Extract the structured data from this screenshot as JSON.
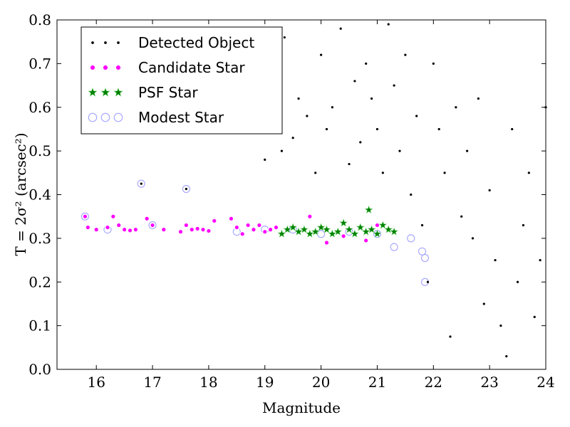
{
  "chart_data": {
    "type": "scatter",
    "xlabel": "Magnitude",
    "ylabel": "T = 2σ² (arcsec²)",
    "xlim": [
      15.3,
      24
    ],
    "ylim": [
      0,
      0.8
    ],
    "xticks": [
      "16",
      "17",
      "18",
      "19",
      "20",
      "21",
      "22",
      "23",
      "24"
    ],
    "yticks": [
      "0.0",
      "0.1",
      "0.2",
      "0.3",
      "0.4",
      "0.5",
      "0.6",
      "0.7",
      "0.8"
    ],
    "legend_position": "top-left",
    "grid": false,
    "series": [
      {
        "name": "Detected Object",
        "marker": "dot",
        "color": "#000000",
        "x": [
          16.8,
          17.6,
          19.0,
          19.1,
          19.3,
          19.35,
          19.5,
          19.6,
          19.75,
          19.9,
          20.0,
          20.1,
          20.2,
          20.35,
          20.5,
          20.6,
          20.7,
          20.8,
          20.9,
          21.0,
          21.1,
          21.2,
          21.3,
          21.4,
          21.5,
          21.6,
          21.7,
          21.8,
          21.9,
          22.0,
          22.1,
          22.2,
          22.3,
          22.4,
          22.5,
          22.6,
          22.7,
          22.8,
          22.9,
          23.0,
          23.1,
          23.2,
          23.3,
          23.4,
          23.5,
          23.6,
          23.7,
          23.8,
          23.9,
          24.0
        ],
        "y": [
          0.425,
          0.413,
          0.48,
          0.63,
          0.5,
          0.76,
          0.53,
          0.62,
          0.58,
          0.45,
          0.72,
          0.55,
          0.6,
          0.78,
          0.47,
          0.66,
          0.52,
          0.7,
          0.62,
          0.55,
          0.45,
          0.79,
          0.65,
          0.5,
          0.72,
          0.4,
          0.58,
          0.33,
          0.2,
          0.7,
          0.55,
          0.45,
          0.075,
          0.6,
          0.35,
          0.5,
          0.3,
          0.62,
          0.15,
          0.41,
          0.25,
          0.1,
          0.03,
          0.55,
          0.2,
          0.33,
          0.45,
          0.12,
          0.25,
          0.6
        ]
      },
      {
        "name": "Candidate Star",
        "marker": "circle",
        "color": "#ff00ff",
        "x": [
          15.8,
          15.85,
          16.0,
          16.2,
          16.3,
          16.4,
          16.5,
          16.6,
          16.7,
          16.9,
          17.0,
          17.2,
          17.5,
          17.6,
          17.7,
          17.8,
          17.9,
          18.0,
          18.1,
          18.4,
          18.5,
          18.6,
          18.7,
          18.8,
          18.9,
          19.0,
          19.1,
          19.2,
          19.8,
          20.1,
          20.4,
          20.6,
          20.8,
          21.0
        ],
        "y": [
          0.35,
          0.325,
          0.32,
          0.325,
          0.35,
          0.33,
          0.32,
          0.318,
          0.32,
          0.345,
          0.33,
          0.32,
          0.315,
          0.33,
          0.32,
          0.322,
          0.32,
          0.317,
          0.34,
          0.345,
          0.325,
          0.31,
          0.33,
          0.32,
          0.33,
          0.315,
          0.32,
          0.325,
          0.35,
          0.29,
          0.305,
          0.31,
          0.295,
          0.33
        ]
      },
      {
        "name": "PSF Star",
        "marker": "star",
        "color": "#008000",
        "x": [
          19.3,
          19.4,
          19.5,
          19.6,
          19.7,
          19.8,
          19.9,
          20.0,
          20.1,
          20.2,
          20.3,
          20.4,
          20.5,
          20.6,
          20.7,
          20.8,
          20.85,
          20.9,
          21.0,
          21.1,
          21.2,
          21.3
        ],
        "y": [
          0.31,
          0.32,
          0.325,
          0.315,
          0.32,
          0.31,
          0.315,
          0.325,
          0.32,
          0.31,
          0.315,
          0.335,
          0.32,
          0.31,
          0.325,
          0.315,
          0.365,
          0.32,
          0.31,
          0.33,
          0.32,
          0.315
        ]
      },
      {
        "name": "Modest Star",
        "marker": "open-circle",
        "color": "#aaaaff",
        "x": [
          15.8,
          16.2,
          16.8,
          17.0,
          17.6,
          18.5,
          19.0,
          19.5,
          20.0,
          20.5,
          21.0,
          21.3,
          21.6,
          21.8,
          21.85,
          21.85
        ],
        "y": [
          0.35,
          0.32,
          0.425,
          0.33,
          0.413,
          0.315,
          0.32,
          0.32,
          0.31,
          0.315,
          0.31,
          0.28,
          0.3,
          0.27,
          0.255,
          0.2
        ]
      }
    ]
  }
}
